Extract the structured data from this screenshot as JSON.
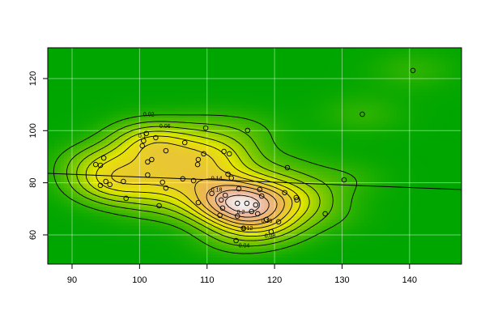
{
  "chart_data": {
    "type": "scatter",
    "x": [
      140.5,
      133.0,
      116.0,
      109.8,
      101.0,
      100.6,
      102.4,
      100.4,
      103.9,
      106.7,
      94.7,
      101.8,
      101.2,
      108.7,
      108.6,
      109.5,
      112.5,
      113.3,
      93.5,
      94.2,
      121.9,
      130.3,
      101.2,
      113.1,
      113.6,
      103.4,
      106.4,
      108.0,
      95.0,
      95.6,
      97.6,
      103.9,
      94.2,
      110.7,
      112.7,
      114.7,
      117.8,
      118.1,
      121.5,
      123.2,
      123.3,
      98.0,
      112.1,
      114.5,
      115.9,
      117.2,
      112.3,
      116.6,
      117.5,
      111.9,
      114.5,
      118.8,
      120.6,
      127.5,
      102.9,
      108.7,
      115.4,
      119.5,
      114.3
    ],
    "y": [
      123.1,
      106.3,
      100.1,
      101.0,
      98.9,
      96.1,
      97.3,
      94.2,
      92.3,
      95.4,
      89.5,
      88.9,
      88.0,
      88.9,
      87.0,
      91.1,
      92.0,
      91.1,
      87.0,
      86.7,
      85.8,
      81.1,
      83.0,
      83.3,
      81.8,
      80.2,
      81.5,
      80.8,
      80.5,
      79.3,
      80.5,
      78.0,
      79.0,
      75.9,
      75.2,
      77.7,
      77.4,
      74.9,
      76.2,
      74.3,
      73.4,
      74.0,
      73.4,
      72.1,
      72.1,
      71.5,
      70.3,
      69.0,
      68.1,
      67.5,
      67.2,
      65.9,
      65.0,
      68.1,
      71.2,
      72.4,
      62.5,
      61.2,
      57.8
    ],
    "fit": {
      "x": [
        86.4,
        147.7
      ],
      "y": [
        83.6,
        77.4
      ]
    },
    "contour_levels": [
      0.02,
      0.04,
      0.06,
      0.08,
      0.1,
      0.12,
      0.14,
      0.16,
      0.18,
      0.2
    ],
    "xlim": [
      86.4,
      147.7
    ],
    "ylim": [
      48.8,
      131.8
    ],
    "xticks": [
      90,
      100,
      110,
      120,
      130,
      140
    ],
    "yticks": [
      60,
      80,
      100,
      120
    ],
    "grid": true
  }
}
